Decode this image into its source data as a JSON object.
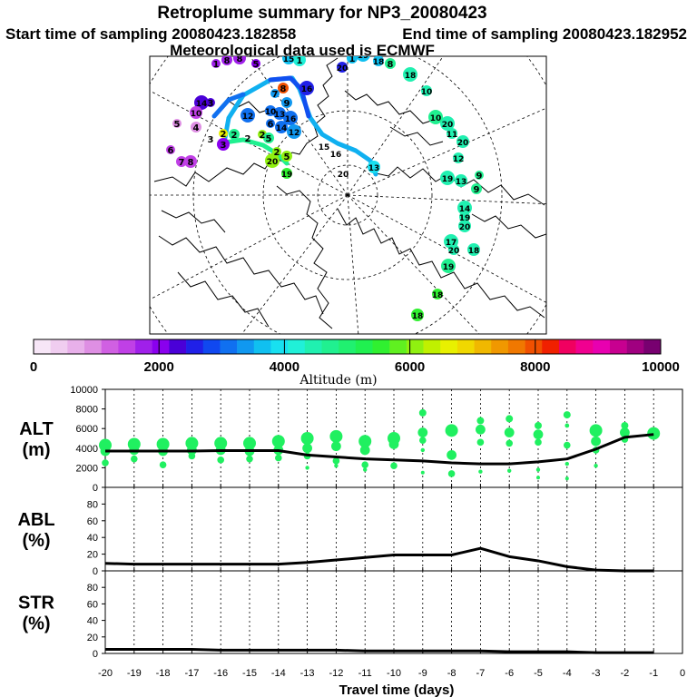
{
  "header": {
    "title": "Retroplume summary for NP3_20080423",
    "start_label": "Start time of sampling 20080423.182858",
    "end_label": "End time of sampling 20080423.182952",
    "met_label": "Meteorological data used is ECMWF"
  },
  "colorbar": {
    "label": "Altitude (m)",
    "ticks": [
      "0",
      "2000",
      "4000",
      "6000",
      "8000",
      "10000"
    ],
    "min": 0,
    "max": 10000,
    "colors": [
      "#f7e6f7",
      "#f0cdf0",
      "#e8b0ea",
      "#de8fe3",
      "#d060e2",
      "#c040e6",
      "#a020ea",
      "#8a00ee",
      "#4a00d8",
      "#2020e8",
      "#1048f0",
      "#1070f0",
      "#1098f0",
      "#10c0f0",
      "#18e0f0",
      "#20f0d8",
      "#20f0b0",
      "#20f090",
      "#20f070",
      "#20f050",
      "#30f030",
      "#60f020",
      "#90f010",
      "#c0f000",
      "#e8f000",
      "#f0d800",
      "#f0b800",
      "#f09800",
      "#f07800",
      "#f05000",
      "#f02000",
      "#f00060",
      "#f00090",
      "#e800b0",
      "#c80090",
      "#a00080",
      "#780070"
    ]
  },
  "map": {
    "numbers": [
      {
        "t": "1",
        "x": 238,
        "y": 74,
        "c": "#a020ea"
      },
      {
        "t": "8",
        "x": 250,
        "y": 70,
        "c": "#a020ea"
      },
      {
        "t": "8",
        "x": 264,
        "y": 68,
        "c": "#a020ea"
      },
      {
        "t": "5",
        "x": 282,
        "y": 74,
        "c": "#8a00ee"
      },
      {
        "t": "15",
        "x": 318,
        "y": 68,
        "c": "#10c0f0"
      },
      {
        "t": "1",
        "x": 330,
        "y": 70,
        "c": "#20f0d8"
      },
      {
        "t": "20",
        "x": 377,
        "y": 78,
        "c": "#2020e8"
      },
      {
        "t": "1",
        "x": 388,
        "y": 68,
        "c": "#10c0f0"
      },
      {
        "t": "19",
        "x": 400,
        "y": 64,
        "c": "#10c0f0"
      },
      {
        "t": "18",
        "x": 417,
        "y": 71,
        "c": "#10c0f0"
      },
      {
        "t": "8",
        "x": 430,
        "y": 74,
        "c": "#20f090"
      },
      {
        "t": "18",
        "x": 452,
        "y": 86,
        "c": "#20f0b0"
      },
      {
        "t": "10",
        "x": 470,
        "y": 104,
        "c": "#20f0b0"
      },
      {
        "t": "8",
        "x": 312,
        "y": 101,
        "c": "#f05000"
      },
      {
        "t": "16",
        "x": 338,
        "y": 101,
        "c": "#2020e8"
      },
      {
        "t": "7",
        "x": 303,
        "y": 107,
        "c": "#1098f0"
      },
      {
        "t": "9",
        "x": 316,
        "y": 117,
        "c": "#1098f0"
      },
      {
        "t": "14",
        "x": 222,
        "y": 117,
        "c": "#4a00d8"
      },
      {
        "t": "3",
        "x": 232,
        "y": 117,
        "c": "#4a00d8"
      },
      {
        "t": "10",
        "x": 216,
        "y": 128,
        "c": "#c040e6"
      },
      {
        "t": "12",
        "x": 273,
        "y": 131,
        "c": "#1070f0"
      },
      {
        "t": "10",
        "x": 298,
        "y": 126,
        "c": "#1070f0"
      },
      {
        "t": "13",
        "x": 308,
        "y": 129,
        "c": "#1070f0"
      },
      {
        "t": "16",
        "x": 320,
        "y": 134,
        "c": "#1070f0"
      },
      {
        "t": "6",
        "x": 298,
        "y": 140,
        "c": "#1070f0"
      },
      {
        "t": "14",
        "x": 310,
        "y": 144,
        "c": "#1070f0"
      },
      {
        "t": "12",
        "x": 324,
        "y": 149,
        "c": "#1098f0"
      },
      {
        "t": "5",
        "x": 195,
        "y": 140,
        "c": "#de8fe3"
      },
      {
        "t": "4",
        "x": 216,
        "y": 144,
        "c": "#de8fe3"
      },
      {
        "t": "3",
        "x": 232,
        "y": 157,
        "c": "#ffffff"
      },
      {
        "t": "2",
        "x": 246,
        "y": 151,
        "c": "#e8f000"
      },
      {
        "t": "2",
        "x": 258,
        "y": 152,
        "c": "#20f090"
      },
      {
        "t": "2",
        "x": 273,
        "y": 156,
        "c": "#ffffff"
      },
      {
        "t": "2",
        "x": 289,
        "y": 152,
        "c": "#90f010"
      },
      {
        "t": "5",
        "x": 296,
        "y": 156,
        "c": "#20f090"
      },
      {
        "t": "3",
        "x": 246,
        "y": 163,
        "c": "#8a00ee"
      },
      {
        "t": "6",
        "x": 188,
        "y": 169,
        "c": "#c040e6"
      },
      {
        "t": "7",
        "x": 200,
        "y": 182,
        "c": "#c040e6"
      },
      {
        "t": "8",
        "x": 210,
        "y": 182,
        "c": "#c040e6"
      },
      {
        "t": "2",
        "x": 305,
        "y": 171,
        "c": "#90f010"
      },
      {
        "t": "5",
        "x": 316,
        "y": 176,
        "c": "#90f010"
      },
      {
        "t": "20",
        "x": 300,
        "y": 181,
        "c": "#90f010"
      },
      {
        "t": "15",
        "x": 357,
        "y": 165,
        "c": "#ffffff"
      },
      {
        "t": "16",
        "x": 370,
        "y": 173,
        "c": "#ffffff"
      },
      {
        "t": "20",
        "x": 378,
        "y": 195,
        "c": "#ffffff"
      },
      {
        "t": "19",
        "x": 316,
        "y": 195,
        "c": "#30f030"
      },
      {
        "t": "13",
        "x": 412,
        "y": 188,
        "c": "#18e0f0"
      },
      {
        "t": "20",
        "x": 493,
        "y": 140,
        "c": "#20f0b0"
      },
      {
        "t": "11",
        "x": 498,
        "y": 151,
        "c": "#20f0b0"
      },
      {
        "t": "20",
        "x": 510,
        "y": 160,
        "c": "#20f0b0"
      },
      {
        "t": "10",
        "x": 480,
        "y": 133,
        "c": "#20f090"
      },
      {
        "t": "12",
        "x": 505,
        "y": 178,
        "c": "#20f0b0"
      },
      {
        "t": "13",
        "x": 508,
        "y": 203,
        "c": "#20f0b0"
      },
      {
        "t": "19",
        "x": 493,
        "y": 200,
        "c": "#20f0b0"
      },
      {
        "t": "9",
        "x": 528,
        "y": 197,
        "c": "#20f090"
      },
      {
        "t": "9",
        "x": 525,
        "y": 212,
        "c": "#20f090"
      },
      {
        "t": "14",
        "x": 512,
        "y": 233,
        "c": "#20f0b0"
      },
      {
        "t": "19",
        "x": 512,
        "y": 243,
        "c": "#20f0b0"
      },
      {
        "t": "20",
        "x": 512,
        "y": 253,
        "c": "#20f0b0"
      },
      {
        "t": "17",
        "x": 497,
        "y": 270,
        "c": "#20f0b0"
      },
      {
        "t": "20",
        "x": 500,
        "y": 279,
        "c": "#20f0b0"
      },
      {
        "t": "18",
        "x": 522,
        "y": 279,
        "c": "#20f0b0"
      },
      {
        "t": "19",
        "x": 494,
        "y": 297,
        "c": "#20f090"
      },
      {
        "t": "18",
        "x": 482,
        "y": 328,
        "c": "#30f030"
      },
      {
        "t": "18",
        "x": 460,
        "y": 351,
        "c": "#30f030"
      }
    ]
  },
  "panels": [
    {
      "label_top": "ALT",
      "label_bottom": "(m)",
      "yticks": [
        "0",
        "2000",
        "4000",
        "6000",
        "8000",
        "10000"
      ],
      "ymax": 10000
    },
    {
      "label_top": "ABL",
      "label_bottom": "(%)",
      "yticks": [
        "0",
        "20",
        "40",
        "60",
        "80"
      ],
      "ymax": 100
    },
    {
      "label_top": "STR",
      "label_bottom": "(%)",
      "yticks": [
        "0",
        "20",
        "40",
        "60",
        "80"
      ],
      "ymax": 100
    }
  ],
  "chart_data": [
    {
      "type": "line",
      "title": "ALT (m)",
      "xlabel": "Travel time (days)",
      "ylabel": "ALT (m)",
      "xlim": [
        -20,
        0
      ],
      "ylim": [
        0,
        10000
      ],
      "xtick_labels": [
        "-20",
        "-19",
        "-18",
        "-17",
        "-16",
        "-15",
        "-14",
        "-13",
        "-12",
        "-11",
        "-10",
        "-9",
        "-8",
        "-7",
        "-6",
        "-5",
        "-4",
        "-3",
        "-2",
        "-1",
        "0"
      ],
      "x": [
        -20,
        -19,
        -18,
        -17,
        -16,
        -15,
        -14,
        -13,
        -12,
        -11,
        -10,
        -9,
        -8,
        -7,
        -6,
        -5,
        -4,
        -3,
        -2,
        -1
      ],
      "mean_altitude": [
        3700,
        3700,
        3700,
        3700,
        3750,
        3750,
        3750,
        3300,
        3100,
        2900,
        2800,
        2700,
        2500,
        2400,
        2400,
        2600,
        2900,
        3900,
        5100,
        5400
      ],
      "clusters": [
        {
          "x": -20,
          "alt": [
            4300,
            3700,
            2500
          ]
        },
        {
          "x": -19,
          "alt": [
            4400,
            3800,
            2900
          ]
        },
        {
          "x": -18,
          "alt": [
            4400,
            3700,
            2300
          ]
        },
        {
          "x": -17,
          "alt": [
            4500,
            3800,
            3200
          ]
        },
        {
          "x": -16,
          "alt": [
            4500,
            3800,
            2800
          ]
        },
        {
          "x": -15,
          "alt": [
            4500,
            3700,
            2900
          ]
        },
        {
          "x": -14,
          "alt": [
            4700,
            3800,
            3000
          ]
        },
        {
          "x": -13,
          "alt": [
            5000,
            4000,
            3200,
            2000
          ]
        },
        {
          "x": -12,
          "alt": [
            5200,
            4200,
            2700,
            2200
          ]
        },
        {
          "x": -11,
          "alt": [
            4700,
            3800,
            2300,
            1800
          ]
        },
        {
          "x": -10,
          "alt": [
            5000,
            4400,
            2200
          ]
        },
        {
          "x": -9,
          "alt": [
            7600,
            5600,
            4800,
            3800,
            1500
          ]
        },
        {
          "x": -8,
          "alt": [
            5800,
            3300,
            1400
          ]
        },
        {
          "x": -7,
          "alt": [
            6800,
            5900,
            4600,
            1600
          ]
        },
        {
          "x": -6,
          "alt": [
            7000,
            5600,
            4500,
            1700
          ]
        },
        {
          "x": -5,
          "alt": [
            6300,
            5400,
            4600,
            1800,
            1000
          ]
        },
        {
          "x": -4,
          "alt": [
            7400,
            6300,
            4300,
            2400,
            900
          ]
        },
        {
          "x": -3,
          "alt": [
            5800,
            4700,
            3800,
            2200
          ]
        },
        {
          "x": -2,
          "alt": [
            6300,
            5600,
            4900
          ]
        },
        {
          "x": -1,
          "alt": [
            5500
          ]
        }
      ]
    },
    {
      "type": "line",
      "title": "ABL (%)",
      "xlabel": "Travel time (days)",
      "ylabel": "ABL (%)",
      "xlim": [
        -20,
        0
      ],
      "ylim": [
        0,
        100
      ],
      "x": [
        -20,
        -19,
        -18,
        -17,
        -16,
        -15,
        -14,
        -13,
        -12,
        -11,
        -10,
        -9,
        -8,
        -7,
        -6,
        -5,
        -4,
        -3,
        -2,
        -1
      ],
      "values": [
        9,
        8,
        8,
        8,
        8,
        8,
        8,
        10,
        13,
        16,
        19,
        19,
        19,
        27,
        17,
        12,
        5,
        1,
        0,
        0
      ]
    },
    {
      "type": "line",
      "title": "STR (%)",
      "xlabel": "Travel time (days)",
      "ylabel": "STR (%)",
      "xlim": [
        -20,
        0
      ],
      "ylim": [
        0,
        100
      ],
      "x": [
        -20,
        -19,
        -18,
        -17,
        -16,
        -15,
        -14,
        -13,
        -12,
        -11,
        -10,
        -9,
        -8,
        -7,
        -6,
        -5,
        -4,
        -3,
        -2,
        -1
      ],
      "values": [
        5,
        5,
        5,
        5,
        4,
        4,
        4,
        4,
        4,
        3,
        3,
        3,
        3,
        3,
        2,
        2,
        2,
        1,
        1,
        1
      ]
    }
  ]
}
